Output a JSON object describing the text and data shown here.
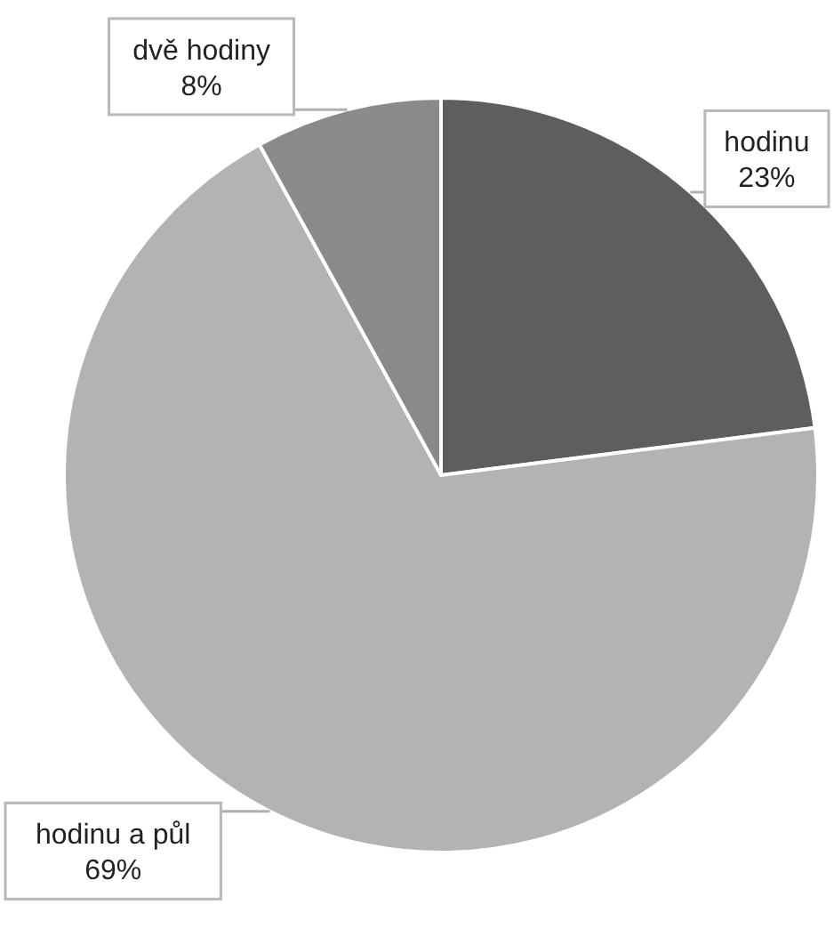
{
  "chart_data": {
    "type": "pie",
    "categories": [
      "hodinu",
      "hodinu a půl",
      "dvě hodiny"
    ],
    "values": [
      23,
      69,
      8
    ],
    "colors": [
      "#5e5e5e",
      "#b3b3b3",
      "#8a8a8a"
    ],
    "value_labels": [
      "23%",
      "69%",
      "8%"
    ]
  }
}
